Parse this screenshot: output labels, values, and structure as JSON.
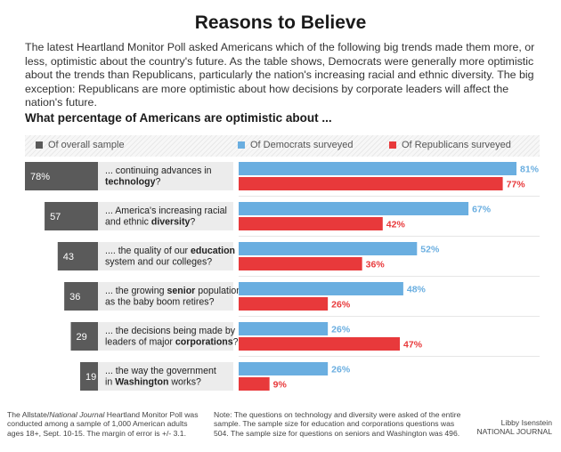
{
  "title": "Reasons to Believe",
  "intro": "The latest Heartland Monitor Poll asked Americans which of the following big trends made them more, or less, optimistic about the country's future. As the table shows, Democrats were generally more optimistic about the trends than Republicans, particularly the nation's increasing racial and ethnic diversity. The big exception: Republicans are more optimistic about how decisions by corporate leaders will affect the nation's future.",
  "question": "What percentage of Americans are optimistic about ...",
  "legend": {
    "overall": "Of overall sample",
    "democrats": "Of Democrats surveyed",
    "republicans": "Of Republicans surveyed"
  },
  "colors": {
    "overall": "#5a5a5a",
    "democrats": "#6aaee0",
    "republicans": "#e8393b",
    "label_bg": "#ececec"
  },
  "chart_data": {
    "type": "bar",
    "categories": [
      [
        {
          "t": "... continuing advances in",
          "b": false
        },
        {
          "t": "|",
          "b": false
        },
        {
          "t": "technology",
          "b": true
        },
        {
          "t": "?",
          "b": false
        }
      ],
      [
        {
          "t": "... America's increasing racial",
          "b": false
        },
        {
          "t": "|",
          "b": false
        },
        {
          "t": "and ethnic ",
          "b": false
        },
        {
          "t": "diversity",
          "b": true
        },
        {
          "t": "?",
          "b": false
        }
      ],
      [
        {
          "t": ".... the quality of our ",
          "b": false
        },
        {
          "t": "education",
          "b": true
        },
        {
          "t": "|",
          "b": false
        },
        {
          "t": "system and our colleges?",
          "b": false
        }
      ],
      [
        {
          "t": "... the growing ",
          "b": false
        },
        {
          "t": "senior",
          "b": true
        },
        {
          "t": " population",
          "b": false
        },
        {
          "t": "|",
          "b": false
        },
        {
          "t": "as the baby boom retires?",
          "b": false
        }
      ],
      [
        {
          "t": "... the decisions being made by",
          "b": false
        },
        {
          "t": "|",
          "b": false
        },
        {
          "t": "leaders of major ",
          "b": false
        },
        {
          "t": "corporations",
          "b": true
        },
        {
          "t": "?",
          "b": false
        }
      ],
      [
        {
          "t": "... the way the government",
          "b": false
        },
        {
          "t": "|",
          "b": false
        },
        {
          "t": "in ",
          "b": false
        },
        {
          "t": "Washington",
          "b": true
        },
        {
          "t": " works?",
          "b": false
        }
      ]
    ],
    "series": [
      {
        "name": "Of overall sample",
        "values": [
          78,
          57,
          43,
          36,
          29,
          19
        ],
        "labels": [
          "78%",
          "57",
          "43",
          "36",
          "29",
          "19"
        ]
      },
      {
        "name": "Of Democrats surveyed",
        "values": [
          81,
          67,
          52,
          48,
          26,
          26
        ],
        "labels": [
          "81%",
          "67%",
          "52%",
          "48%",
          "26%",
          "26%"
        ]
      },
      {
        "name": "Of Republicans surveyed",
        "values": [
          77,
          42,
          36,
          26,
          47,
          9
        ],
        "labels": [
          "77%",
          "42%",
          "36%",
          "26%",
          "47%",
          "9%"
        ]
      }
    ],
    "ylim": [
      0,
      81
    ],
    "grid": false,
    "legend_position": "top"
  },
  "footer": {
    "source_pre": "The Allstate/",
    "source_italic": "National Journal",
    "source_post": " Heartland Monitor Poll was conducted among a sample of 1,000 American adults ages 18+, Sept. 10-15. The margin of error is +/- 3.1.",
    "note": "Note: The questions on technology and diversity were asked of the entire sample. The sample size for education and corporations questions was 504. The sample size for questions on seniors and Washington was 496.",
    "author": "Libby Isenstein",
    "org": "NATIONAL JOURNAL"
  }
}
